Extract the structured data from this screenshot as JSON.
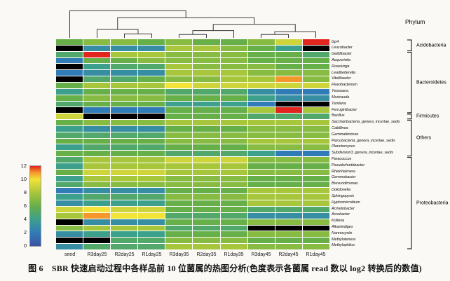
{
  "figure": {
    "caption": "图 6　SBR 快速启动过程中各样品前 10 位菌属的热图分析(色度表示各菌属 read 数以 log2 转换后的数值)",
    "phylum_header": "Phylum"
  },
  "chart_data": {
    "type": "heatmap",
    "title": "",
    "xlabel": "",
    "ylabel": "",
    "value_scale": "log2(read count)",
    "columns": [
      "seed",
      "R3day25",
      "R2day25",
      "R1day25",
      "R3day35",
      "R2day35",
      "R1day35",
      "R3day45",
      "R2day45",
      "R1day45"
    ],
    "rows": [
      "Gp4",
      "Leucobacter",
      "Gelidibacter",
      "Aequorivita",
      "Roseivirga",
      "Leadbetterella",
      "Vitellibacter",
      "Flavobacterium",
      "Yeosuana",
      "Muricauda",
      "Tamlana",
      "Ferruginibacter",
      "Bacillus",
      "Saccharibacteria_genera_incertae_sedis",
      "Caldilinea",
      "Gemmatimonas",
      "Parcubacteria_genera_incertae_sedis",
      "Planctomyces",
      "Subdivision3_genera_incertae_sedis",
      "Paracoccus",
      "Pseudorhodobacter",
      "Rheinheimera",
      "Gemmobacter",
      "Brevundimonas",
      "Dokdonella",
      "Sphingopyxis",
      "Hyphomicrobium",
      "Acinetobacter",
      "Arcobacter",
      "Kofleria",
      "Alkanindiges",
      "Nannocystis",
      "Methylotenera",
      "Methylophilus"
    ],
    "values": [
      [
        6,
        7,
        7,
        6,
        7,
        6,
        6,
        7,
        9,
        12
      ],
      [
        null,
        3,
        3,
        3,
        8,
        8,
        7,
        6,
        4,
        null
      ],
      [
        5,
        12,
        8,
        8,
        7,
        7,
        7,
        6,
        6,
        5
      ],
      [
        2,
        6,
        6,
        7,
        7,
        7,
        7,
        6,
        6,
        6
      ],
      [
        null,
        4,
        5,
        5,
        8,
        7,
        7,
        7,
        6,
        6
      ],
      [
        2,
        3,
        3,
        3,
        8,
        8,
        8,
        7,
        7,
        7
      ],
      [
        null,
        5,
        5,
        6,
        7,
        7,
        8,
        8,
        11,
        7
      ],
      [
        6,
        8,
        8,
        8,
        10,
        9,
        9,
        9,
        9,
        9
      ],
      [
        4,
        6,
        6,
        6,
        5,
        5,
        5,
        3,
        2,
        2
      ],
      [
        6,
        7,
        7,
        7,
        6,
        6,
        6,
        4,
        3,
        3
      ],
      [
        5,
        6,
        6,
        6,
        4,
        4,
        4,
        2,
        null,
        null
      ],
      [
        null,
        2,
        2,
        2,
        6,
        6,
        6,
        8,
        12,
        8
      ],
      [
        9,
        null,
        null,
        null,
        6,
        6,
        6,
        5,
        5,
        5
      ],
      [
        6,
        7,
        7,
        7,
        8,
        8,
        8,
        8,
        8,
        8
      ],
      [
        4,
        3,
        3,
        3,
        6,
        6,
        6,
        7,
        7,
        7
      ],
      [
        5,
        5,
        5,
        5,
        7,
        7,
        7,
        7,
        7,
        7
      ],
      [
        6,
        6,
        6,
        6,
        7,
        7,
        7,
        8,
        8,
        8
      ],
      [
        4,
        5,
        5,
        5,
        6,
        6,
        6,
        7,
        7,
        7
      ],
      [
        6,
        6,
        6,
        6,
        5,
        5,
        5,
        4,
        2,
        2
      ],
      [
        5,
        8,
        8,
        8,
        9,
        9,
        9,
        7,
        7,
        7
      ],
      [
        4,
        8,
        8,
        8,
        8,
        8,
        8,
        6,
        6,
        6
      ],
      [
        6,
        9,
        9,
        9,
        8,
        8,
        8,
        7,
        7,
        7
      ],
      [
        4,
        8,
        8,
        8,
        7,
        7,
        7,
        6,
        6,
        6
      ],
      [
        5,
        7,
        7,
        7,
        7,
        7,
        7,
        6,
        6,
        6
      ],
      [
        2,
        3,
        3,
        3,
        6,
        6,
        6,
        8,
        8,
        8
      ],
      [
        4,
        5,
        5,
        5,
        7,
        7,
        7,
        8,
        8,
        8
      ],
      [
        3,
        4,
        4,
        4,
        6,
        6,
        6,
        8,
        8,
        8
      ],
      [
        9,
        10,
        9,
        9,
        6,
        6,
        6,
        5,
        5,
        5
      ],
      [
        8,
        11,
        10,
        10,
        5,
        5,
        5,
        3,
        3,
        3
      ],
      [
        null,
        3,
        3,
        3,
        6,
        6,
        6,
        7,
        7,
        7
      ],
      [
        7,
        8,
        8,
        8,
        5,
        5,
        5,
        null,
        null,
        null
      ],
      [
        3,
        4,
        4,
        4,
        6,
        6,
        6,
        7,
        7,
        7
      ],
      [
        null,
        null,
        5,
        5,
        7,
        7,
        7,
        6,
        6,
        6
      ],
      [
        3,
        5,
        5,
        5,
        8,
        8,
        8,
        7,
        7,
        7
      ]
    ],
    "null_color": "#000000",
    "colormap": {
      "stops": [
        [
          0,
          "#3a53a4"
        ],
        [
          2,
          "#317cb7"
        ],
        [
          4,
          "#3ca08c"
        ],
        [
          6,
          "#67af48"
        ],
        [
          8,
          "#a8c63c"
        ],
        [
          10,
          "#f2e338"
        ],
        [
          11,
          "#f5982c"
        ],
        [
          12,
          "#e2261f"
        ]
      ]
    },
    "legend": {
      "ticks": [
        12,
        10,
        8,
        6,
        4,
        2,
        0
      ],
      "min": 0,
      "max": 12
    },
    "phylum_groups": [
      {
        "label": "Acidobacteria",
        "start": 0,
        "end": 1
      },
      {
        "label": "Bacteroidetes",
        "start": 2,
        "end": 11
      },
      {
        "label": "Firmicutes",
        "start": 12,
        "end": 12
      },
      {
        "label": "Others",
        "start": 13,
        "end": 18
      },
      {
        "label": "Proteobacteria",
        "start": 19,
        "end": 33
      }
    ],
    "dendrogram": {
      "merges": [
        [
          2,
          3,
          0.14
        ],
        [
          1,
          "m0",
          0.3
        ],
        [
          4,
          5,
          0.12
        ],
        [
          "m2",
          6,
          0.26
        ],
        [
          7,
          8,
          0.12
        ],
        [
          "m4",
          9,
          0.22
        ],
        [
          "m3",
          "m5",
          0.48
        ],
        [
          "m1",
          "m6",
          0.72
        ],
        [
          0,
          "m7",
          0.97
        ]
      ]
    }
  }
}
